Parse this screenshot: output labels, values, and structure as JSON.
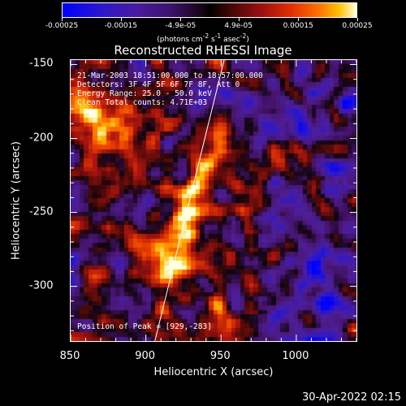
{
  "colorbar": {
    "tick_labels": [
      "-0.00025",
      "-0.00015",
      "-4.9e-05",
      "4.9e-05",
      "0.00015",
      "0.00025"
    ],
    "tick_values": [
      -0.00025,
      -0.00015,
      -4.9e-05,
      4.9e-05,
      0.00015,
      0.00025
    ],
    "range": [
      -0.00025,
      0.00025
    ],
    "units_prefix": "(photons cm",
    "units_sup1": "-2",
    "units_mid1": " s",
    "units_sup2": "-1",
    "units_mid2": " asec",
    "units_sup3": "-2",
    "units_suffix": ")"
  },
  "info": {
    "time_range": "21-Mar-2003 18:51:00.000 to 18:57:00.000",
    "detectors": "Detectors: 3F 4F 5F 6F 7F 8F, Att 0",
    "energy": "Energy Range: 25.0 - 50.0 keV",
    "clean": "Clean    Total counts: 4.71E+03",
    "peak": "Position of Peak = [929,-283]"
  },
  "footer_date": "30-Apr-2022 02:15",
  "chart_data": {
    "type": "heatmap",
    "title": "Reconstructed RHESSI Image",
    "xlabel": "Heliocentric X (arcsec)",
    "ylabel": "Heliocentric Y (arcsec)",
    "xlim": [
      850,
      1040
    ],
    "ylim": [
      -337,
      -147
    ],
    "xticks": [
      850,
      900,
      950,
      1000
    ],
    "yticks": [
      -150,
      -200,
      -250,
      -300
    ],
    "peak": [
      929,
      -283
    ],
    "limb_line": [
      [
        906,
        -337
      ],
      [
        952,
        -147
      ]
    ],
    "colors": {
      "negative_high": "#0000ff",
      "negative_mid": "#4a1aa0",
      "zero": "#000000",
      "positive_mid": "#e03000",
      "positive_high": "#ffffe0"
    }
  }
}
